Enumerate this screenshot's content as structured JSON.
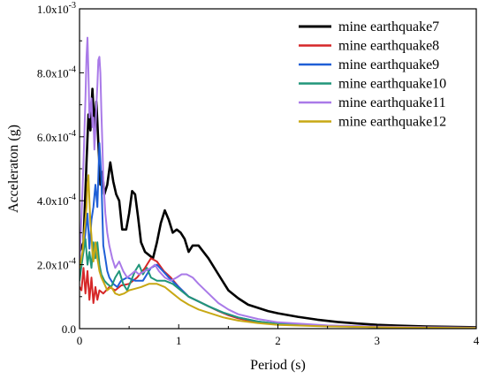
{
  "chart_data": {
    "type": "line",
    "title": "",
    "xlabel": "Period (s)",
    "ylabel": "Acceleraton (g)",
    "xlim": [
      0,
      4
    ],
    "ylim": [
      0,
      0.001
    ],
    "grid": false,
    "legend_position": "top-right",
    "x_ticks": [
      0,
      1,
      2,
      3,
      4
    ],
    "x_tick_labels": [
      "0",
      "1",
      "2",
      "3",
      "4"
    ],
    "y_ticks": [
      0,
      0.0002,
      0.0004,
      0.0006,
      0.0008,
      0.001
    ],
    "y_tick_labels": [
      {
        "base": "0.0",
        "exp": ""
      },
      {
        "base": "2.0x10",
        "exp": "-4"
      },
      {
        "base": "4.0x10",
        "exp": "-4"
      },
      {
        "base": "6.0x10",
        "exp": "-4"
      },
      {
        "base": "8.0x10",
        "exp": "-4"
      },
      {
        "base": "1.0x10",
        "exp": "-3"
      }
    ],
    "series": [
      {
        "name": "mine earthquake7",
        "color": "#000000",
        "points": [
          [
            0,
            0.00024
          ],
          [
            0.04,
            0.00027
          ],
          [
            0.07,
            0.00052
          ],
          [
            0.09,
            0.00067
          ],
          [
            0.11,
            0.00062
          ],
          [
            0.13,
            0.00075
          ],
          [
            0.15,
            0.00063
          ],
          [
            0.17,
            0.00071
          ],
          [
            0.19,
            0.00058
          ],
          [
            0.21,
            0.00045
          ],
          [
            0.23,
            0.00049
          ],
          [
            0.25,
            0.00042
          ],
          [
            0.28,
            0.00045
          ],
          [
            0.31,
            0.00052
          ],
          [
            0.34,
            0.00046
          ],
          [
            0.37,
            0.00042
          ],
          [
            0.4,
            0.0004
          ],
          [
            0.43,
            0.00031
          ],
          [
            0.47,
            0.00031
          ],
          [
            0.5,
            0.00036
          ],
          [
            0.53,
            0.00043
          ],
          [
            0.56,
            0.00042
          ],
          [
            0.59,
            0.00035
          ],
          [
            0.62,
            0.00027
          ],
          [
            0.66,
            0.00024
          ],
          [
            0.7,
            0.00023
          ],
          [
            0.74,
            0.00022
          ],
          [
            0.78,
            0.00027
          ],
          [
            0.82,
            0.00033
          ],
          [
            0.86,
            0.00037
          ],
          [
            0.9,
            0.00034
          ],
          [
            0.94,
            0.0003
          ],
          [
            0.98,
            0.00031
          ],
          [
            1.02,
            0.0003
          ],
          [
            1.06,
            0.00028
          ],
          [
            1.1,
            0.00024
          ],
          [
            1.14,
            0.00026
          ],
          [
            1.2,
            0.00026
          ],
          [
            1.3,
            0.00022
          ],
          [
            1.4,
            0.00017
          ],
          [
            1.5,
            0.00012
          ],
          [
            1.6,
            9.5e-05
          ],
          [
            1.7,
            7.5e-05
          ],
          [
            1.8,
            6.5e-05
          ],
          [
            1.9,
            5.5e-05
          ],
          [
            2.0,
            4.8e-05
          ],
          [
            2.2,
            3.7e-05
          ],
          [
            2.4,
            2.8e-05
          ],
          [
            2.6,
            2.1e-05
          ],
          [
            2.8,
            1.6e-05
          ],
          [
            3.0,
            1.2e-05
          ],
          [
            3.2,
            9.5e-06
          ],
          [
            3.5,
            7e-06
          ],
          [
            4.0,
            4.5e-06
          ]
        ]
      },
      {
        "name": "mine earthquake8",
        "color": "#d62728",
        "points": [
          [
            0,
            0.00013
          ],
          [
            0.02,
            0.00012
          ],
          [
            0.04,
            0.00019
          ],
          [
            0.06,
            0.00011
          ],
          [
            0.08,
            0.00018
          ],
          [
            0.1,
            9e-05
          ],
          [
            0.12,
            0.00016
          ],
          [
            0.14,
            8e-05
          ],
          [
            0.16,
            0.00013
          ],
          [
            0.18,
            9e-05
          ],
          [
            0.2,
            0.00012
          ],
          [
            0.24,
            0.00011
          ],
          [
            0.3,
            0.00013
          ],
          [
            0.36,
            0.00012
          ],
          [
            0.42,
            0.000135
          ],
          [
            0.5,
            0.00014
          ],
          [
            0.58,
            0.00016
          ],
          [
            0.66,
            0.00019
          ],
          [
            0.72,
            0.00022
          ],
          [
            0.78,
            0.00021
          ],
          [
            0.85,
            0.00018
          ],
          [
            0.92,
            0.00016
          ],
          [
            1.0,
            0.00013
          ],
          [
            1.1,
            0.0001
          ],
          [
            1.2,
            8.5e-05
          ],
          [
            1.3,
            7e-05
          ],
          [
            1.4,
            5.5e-05
          ],
          [
            1.5,
            4.2e-05
          ],
          [
            1.6,
            3.2e-05
          ],
          [
            1.8,
            2e-05
          ],
          [
            2.0,
            1.4e-05
          ],
          [
            2.5,
            8e-06
          ],
          [
            3.0,
            5e-06
          ],
          [
            3.5,
            3.5e-06
          ],
          [
            4.0,
            2.5e-06
          ]
        ]
      },
      {
        "name": "mine earthquake9",
        "color": "#1f5fd6",
        "points": [
          [
            0,
            0.00018
          ],
          [
            0.03,
            0.00023
          ],
          [
            0.06,
            0.0003
          ],
          [
            0.08,
            0.00036
          ],
          [
            0.1,
            0.00025
          ],
          [
            0.12,
            0.00034
          ],
          [
            0.14,
            0.00038
          ],
          [
            0.16,
            0.00045
          ],
          [
            0.18,
            0.00038
          ],
          [
            0.2,
            0.00058
          ],
          [
            0.22,
            0.00047
          ],
          [
            0.24,
            0.00026
          ],
          [
            0.26,
            0.00022
          ],
          [
            0.28,
            0.00018
          ],
          [
            0.3,
            0.00016
          ],
          [
            0.34,
            0.00014
          ],
          [
            0.38,
            0.00013
          ],
          [
            0.42,
            0.00015
          ],
          [
            0.48,
            0.00016
          ],
          [
            0.56,
            0.00015
          ],
          [
            0.64,
            0.00015
          ],
          [
            0.72,
            0.00019
          ],
          [
            0.78,
            0.0002
          ],
          [
            0.84,
            0.00018
          ],
          [
            0.9,
            0.00016
          ],
          [
            1.0,
            0.00013
          ],
          [
            1.1,
            0.0001
          ],
          [
            1.2,
            8.5e-05
          ],
          [
            1.3,
            7e-05
          ],
          [
            1.45,
            5e-05
          ],
          [
            1.6,
            3.5e-05
          ],
          [
            1.8,
            2.2e-05
          ],
          [
            2.0,
            1.5e-05
          ],
          [
            2.5,
            8e-06
          ],
          [
            3.0,
            5e-06
          ],
          [
            3.5,
            3.5e-06
          ],
          [
            4.0,
            2.5e-06
          ]
        ]
      },
      {
        "name": "mine earthquake10",
        "color": "#21967a",
        "points": [
          [
            0,
            0.00015
          ],
          [
            0.03,
            0.00022
          ],
          [
            0.06,
            0.00028
          ],
          [
            0.08,
            0.0002
          ],
          [
            0.1,
            0.00024
          ],
          [
            0.12,
            0.00019
          ],
          [
            0.14,
            0.00027
          ],
          [
            0.16,
            0.00022
          ],
          [
            0.18,
            0.00027
          ],
          [
            0.2,
            0.0002
          ],
          [
            0.22,
            0.00017
          ],
          [
            0.25,
            0.00015
          ],
          [
            0.28,
            0.00014
          ],
          [
            0.32,
            0.00013
          ],
          [
            0.36,
            0.00016
          ],
          [
            0.4,
            0.00018
          ],
          [
            0.44,
            0.00014
          ],
          [
            0.48,
            0.00012
          ],
          [
            0.52,
            0.00015
          ],
          [
            0.56,
            0.00018
          ],
          [
            0.6,
            0.0002
          ],
          [
            0.64,
            0.00017
          ],
          [
            0.68,
            0.00019
          ],
          [
            0.72,
            0.00016
          ],
          [
            0.78,
            0.00015
          ],
          [
            0.86,
            0.00015
          ],
          [
            0.94,
            0.00014
          ],
          [
            1.02,
            0.00012
          ],
          [
            1.1,
            0.0001
          ],
          [
            1.2,
            8.5e-05
          ],
          [
            1.3,
            7e-05
          ],
          [
            1.45,
            5e-05
          ],
          [
            1.6,
            3.5e-05
          ],
          [
            1.8,
            2.2e-05
          ],
          [
            2.0,
            1.5e-05
          ],
          [
            2.5,
            8e-06
          ],
          [
            3.0,
            5e-06
          ],
          [
            3.5,
            3.5e-06
          ],
          [
            4.0,
            2.5e-06
          ]
        ]
      },
      {
        "name": "mine earthquake11",
        "color": "#a97ae8",
        "points": [
          [
            0,
            0.0002
          ],
          [
            0.02,
            0.00035
          ],
          [
            0.04,
            0.00052
          ],
          [
            0.06,
            0.00072
          ],
          [
            0.07,
            0.00085
          ],
          [
            0.08,
            0.00091
          ],
          [
            0.09,
            0.0008
          ],
          [
            0.1,
            0.00066
          ],
          [
            0.12,
            0.00072
          ],
          [
            0.13,
            0.00063
          ],
          [
            0.14,
            0.00066
          ],
          [
            0.15,
            0.00056
          ],
          [
            0.16,
            0.00062
          ],
          [
            0.17,
            0.0007
          ],
          [
            0.18,
            0.00076
          ],
          [
            0.19,
            0.00084
          ],
          [
            0.2,
            0.00085
          ],
          [
            0.21,
            0.0008
          ],
          [
            0.22,
            0.00068
          ],
          [
            0.23,
            0.00058
          ],
          [
            0.24,
            0.00047
          ],
          [
            0.26,
            0.00036
          ],
          [
            0.28,
            0.0003
          ],
          [
            0.3,
            0.00026
          ],
          [
            0.33,
            0.00022
          ],
          [
            0.36,
            0.00019
          ],
          [
            0.4,
            0.00021
          ],
          [
            0.44,
            0.00018
          ],
          [
            0.48,
            0.00016
          ],
          [
            0.52,
            0.00017
          ],
          [
            0.56,
            0.00018
          ],
          [
            0.6,
            0.00017
          ],
          [
            0.66,
            0.00018
          ],
          [
            0.72,
            0.00019
          ],
          [
            0.76,
            0.0002
          ],
          [
            0.8,
            0.00018
          ],
          [
            0.86,
            0.00016
          ],
          [
            0.92,
            0.00015
          ],
          [
            0.98,
            0.00016
          ],
          [
            1.03,
            0.00017
          ],
          [
            1.08,
            0.00017
          ],
          [
            1.14,
            0.00016
          ],
          [
            1.2,
            0.00014
          ],
          [
            1.3,
            0.00011
          ],
          [
            1.4,
            8e-05
          ],
          [
            1.5,
            6e-05
          ],
          [
            1.6,
            4.5e-05
          ],
          [
            1.8,
            3e-05
          ],
          [
            2.0,
            2e-05
          ],
          [
            2.5,
            1e-05
          ],
          [
            3.0,
            6.5e-06
          ],
          [
            3.5,
            4.5e-06
          ],
          [
            4.0,
            3e-06
          ]
        ]
      },
      {
        "name": "mine earthquake12",
        "color": "#c8a814",
        "points": [
          [
            0,
            0.00019
          ],
          [
            0.03,
            0.00024
          ],
          [
            0.05,
            0.00031
          ],
          [
            0.07,
            0.00038
          ],
          [
            0.08,
            0.00045
          ],
          [
            0.09,
            0.00048
          ],
          [
            0.1,
            0.0004
          ],
          [
            0.11,
            0.00033
          ],
          [
            0.12,
            0.00029
          ],
          [
            0.13,
            0.00024
          ],
          [
            0.14,
            0.00021
          ],
          [
            0.16,
            0.00027
          ],
          [
            0.18,
            0.00022
          ],
          [
            0.2,
            0.00018
          ],
          [
            0.22,
            0.00016
          ],
          [
            0.25,
            0.00014
          ],
          [
            0.28,
            0.00012
          ],
          [
            0.32,
            0.00013
          ],
          [
            0.36,
            0.00011
          ],
          [
            0.4,
            0.000105
          ],
          [
            0.45,
            0.00011
          ],
          [
            0.5,
            0.00012
          ],
          [
            0.56,
            0.000125
          ],
          [
            0.62,
            0.00013
          ],
          [
            0.7,
            0.00014
          ],
          [
            0.78,
            0.00014
          ],
          [
            0.86,
            0.00013
          ],
          [
            0.94,
            0.00011
          ],
          [
            1.02,
            9e-05
          ],
          [
            1.1,
            7.5e-05
          ],
          [
            1.2,
            6e-05
          ],
          [
            1.3,
            5e-05
          ],
          [
            1.45,
            3.5e-05
          ],
          [
            1.6,
            2.5e-05
          ],
          [
            1.8,
            1.7e-05
          ],
          [
            2.0,
            1.2e-05
          ],
          [
            2.5,
            7e-06
          ],
          [
            3.0,
            4.5e-06
          ],
          [
            3.5,
            3e-06
          ],
          [
            4.0,
            2e-06
          ]
        ]
      }
    ]
  }
}
